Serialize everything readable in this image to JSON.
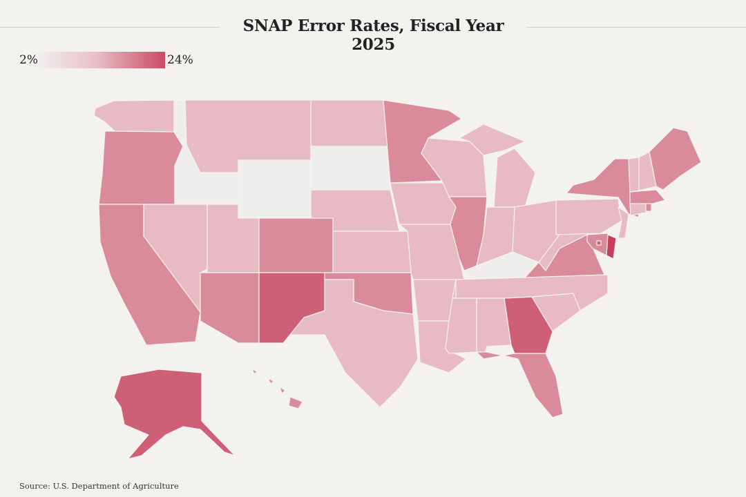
{
  "title": "SNAP Error Rates, Fiscal Year 2025",
  "legend": {
    "min_label": "2%",
    "max_label": "24%",
    "low_color": "#f0efed",
    "mid_color": "#e8bfc8",
    "high_color": "#c94a64"
  },
  "source": "Source: U.S. Department of Agriculture",
  "colors": {
    "very_low": "#efeeec",
    "low": "#e7bac4",
    "medium": "#d98a9b",
    "high": "#cd5f76",
    "very_high": "#c6405c"
  },
  "states": [
    {
      "id": "WA",
      "name": "Washington",
      "level": "low"
    },
    {
      "id": "OR",
      "name": "Oregon",
      "level": "medium"
    },
    {
      "id": "CA",
      "name": "California",
      "level": "medium"
    },
    {
      "id": "ID",
      "name": "Idaho",
      "level": "very_low"
    },
    {
      "id": "NV",
      "name": "Nevada",
      "level": "low"
    },
    {
      "id": "MT",
      "name": "Montana",
      "level": "low"
    },
    {
      "id": "WY",
      "name": "Wyoming",
      "level": "very_low"
    },
    {
      "id": "UT",
      "name": "Utah",
      "level": "low"
    },
    {
      "id": "AZ",
      "name": "Arizona",
      "level": "medium"
    },
    {
      "id": "CO",
      "name": "Colorado",
      "level": "medium"
    },
    {
      "id": "NM",
      "name": "New Mexico",
      "level": "high"
    },
    {
      "id": "ND",
      "name": "North Dakota",
      "level": "low"
    },
    {
      "id": "SD",
      "name": "South Dakota",
      "level": "very_low"
    },
    {
      "id": "NE",
      "name": "Nebraska",
      "level": "low"
    },
    {
      "id": "KS",
      "name": "Kansas",
      "level": "low"
    },
    {
      "id": "OK",
      "name": "Oklahoma",
      "level": "medium"
    },
    {
      "id": "TX",
      "name": "Texas",
      "level": "low"
    },
    {
      "id": "MN",
      "name": "Minnesota",
      "level": "medium"
    },
    {
      "id": "IA",
      "name": "Iowa",
      "level": "low"
    },
    {
      "id": "MO",
      "name": "Missouri",
      "level": "low"
    },
    {
      "id": "AR",
      "name": "Arkansas",
      "level": "low"
    },
    {
      "id": "LA",
      "name": "Louisiana",
      "level": "low"
    },
    {
      "id": "WI",
      "name": "Wisconsin",
      "level": "low"
    },
    {
      "id": "IL",
      "name": "Illinois",
      "level": "medium"
    },
    {
      "id": "MI",
      "name": "Michigan",
      "level": "low"
    },
    {
      "id": "IN",
      "name": "Indiana",
      "level": "low"
    },
    {
      "id": "OH",
      "name": "Ohio",
      "level": "low"
    },
    {
      "id": "KY",
      "name": "Kentucky",
      "level": "very_low"
    },
    {
      "id": "TN",
      "name": "Tennessee",
      "level": "low"
    },
    {
      "id": "MS",
      "name": "Mississippi",
      "level": "low"
    },
    {
      "id": "AL",
      "name": "Alabama",
      "level": "low"
    },
    {
      "id": "GA",
      "name": "Georgia",
      "level": "high"
    },
    {
      "id": "FL",
      "name": "Florida",
      "level": "medium"
    },
    {
      "id": "SC",
      "name": "South Carolina",
      "level": "low"
    },
    {
      "id": "NC",
      "name": "North Carolina",
      "level": "low"
    },
    {
      "id": "VA",
      "name": "Virginia",
      "level": "medium"
    },
    {
      "id": "WV",
      "name": "West Virginia",
      "level": "low"
    },
    {
      "id": "PA",
      "name": "Pennsylvania",
      "level": "low"
    },
    {
      "id": "NY",
      "name": "New York",
      "level": "medium"
    },
    {
      "id": "NJ",
      "name": "New Jersey",
      "level": "low"
    },
    {
      "id": "DE",
      "name": "Delaware",
      "level": "very_high"
    },
    {
      "id": "MD",
      "name": "Maryland",
      "level": "medium"
    },
    {
      "id": "DC",
      "name": "District of Columbia",
      "level": "high"
    },
    {
      "id": "CT",
      "name": "Connecticut",
      "level": "low"
    },
    {
      "id": "RI",
      "name": "Rhode Island",
      "level": "medium"
    },
    {
      "id": "MA",
      "name": "Massachusetts",
      "level": "medium"
    },
    {
      "id": "VT",
      "name": "Vermont",
      "level": "low"
    },
    {
      "id": "NH",
      "name": "New Hampshire",
      "level": "low"
    },
    {
      "id": "ME",
      "name": "Maine",
      "level": "medium"
    },
    {
      "id": "AK",
      "name": "Alaska",
      "level": "high"
    },
    {
      "id": "HI",
      "name": "Hawaii",
      "level": "medium"
    }
  ]
}
